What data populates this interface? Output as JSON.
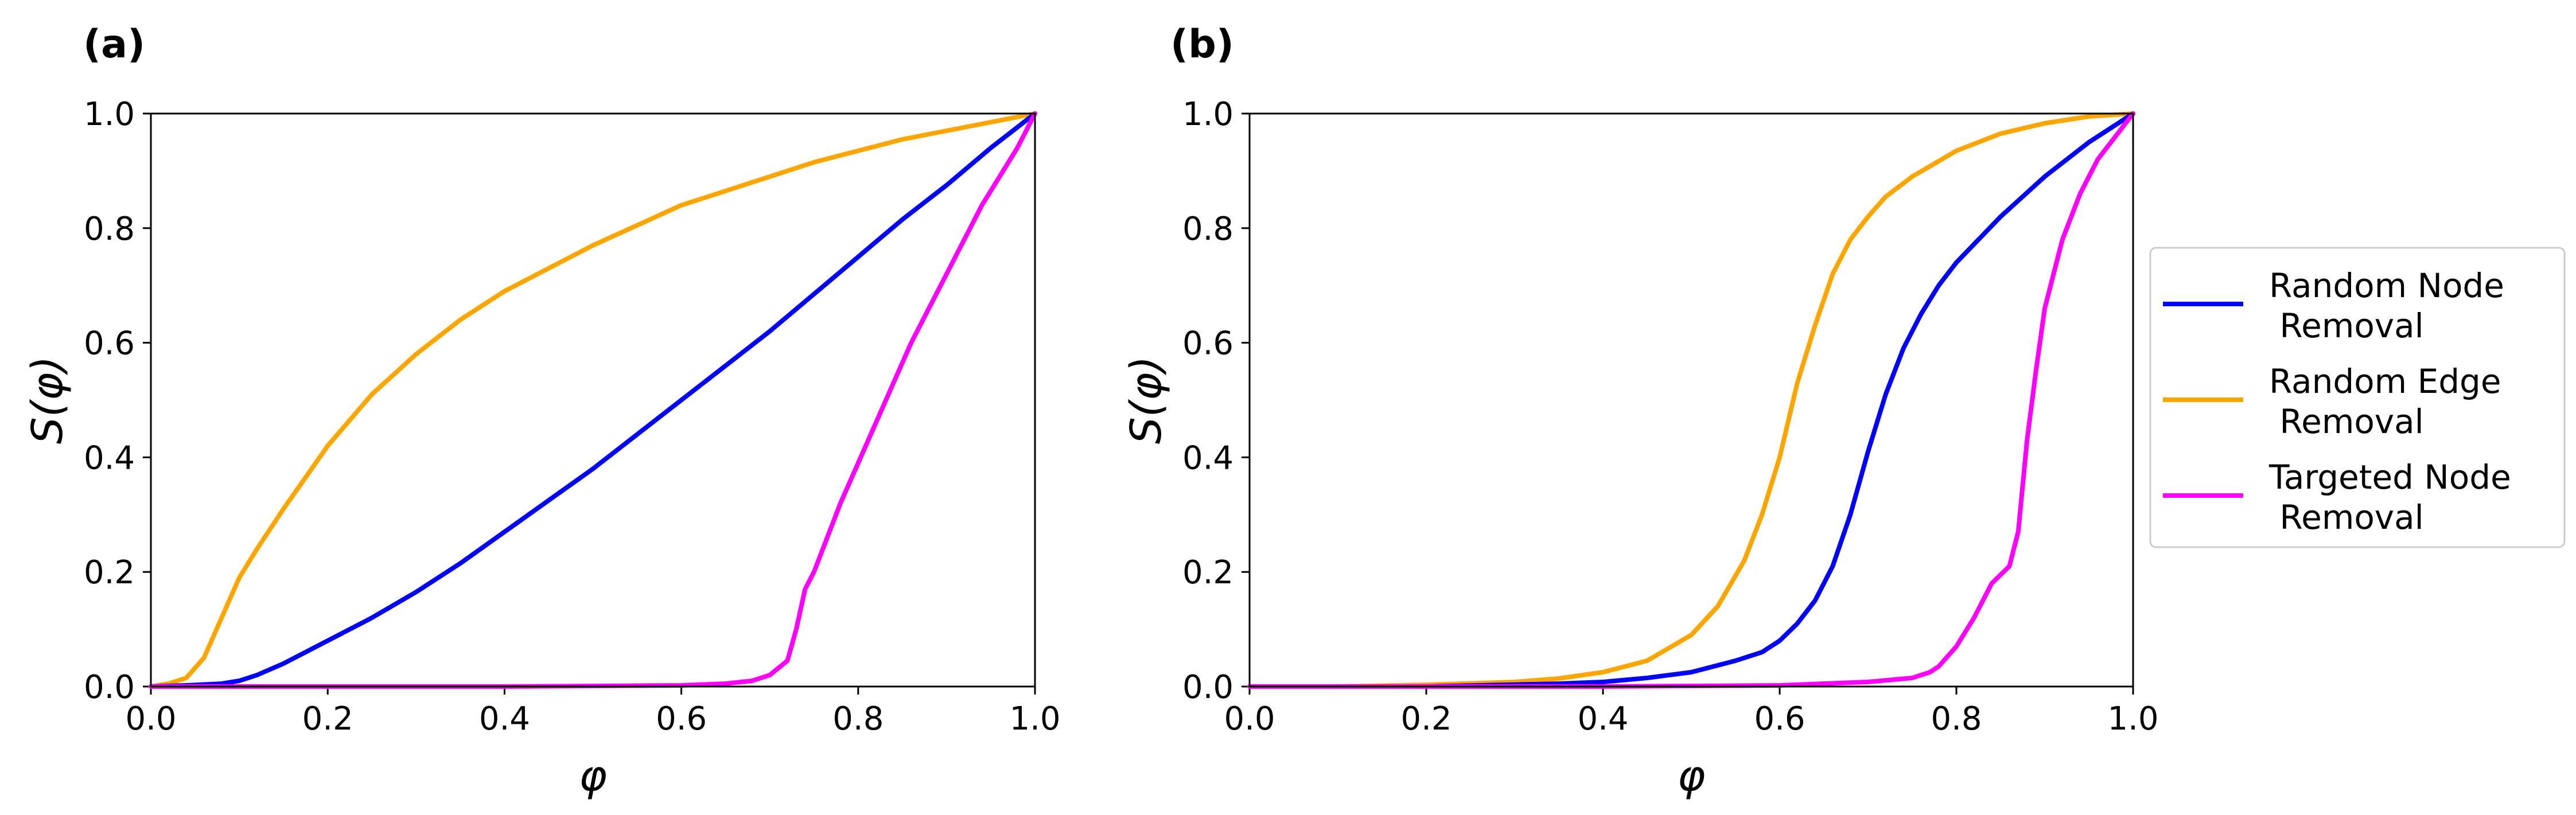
{
  "chart_data": [
    {
      "panel_label": "(a)",
      "type": "line",
      "xlabel": "φ",
      "ylabel": "S(φ)",
      "xlim": [
        0.0,
        1.0
      ],
      "ylim": [
        0.0,
        1.0
      ],
      "xticks": [
        "0.0",
        "0.2",
        "0.4",
        "0.6",
        "0.8",
        "1.0"
      ],
      "yticks": [
        "0.0",
        "0.2",
        "0.4",
        "0.6",
        "0.8",
        "1.0"
      ],
      "grid": false,
      "series": [
        {
          "name": "Random Edge Removal",
          "color": "#FFA500",
          "x": [
            0.0,
            0.02,
            0.04,
            0.06,
            0.08,
            0.1,
            0.12,
            0.15,
            0.2,
            0.25,
            0.3,
            0.35,
            0.4,
            0.45,
            0.5,
            0.55,
            0.6,
            0.65,
            0.7,
            0.75,
            0.8,
            0.85,
            0.9,
            0.95,
            1.0
          ],
          "y": [
            0.0,
            0.005,
            0.015,
            0.05,
            0.12,
            0.19,
            0.24,
            0.31,
            0.42,
            0.51,
            0.58,
            0.64,
            0.69,
            0.73,
            0.77,
            0.805,
            0.84,
            0.865,
            0.89,
            0.915,
            0.935,
            0.955,
            0.97,
            0.985,
            1.0
          ]
        },
        {
          "name": "Random Node Removal",
          "color": "#0000FF",
          "x": [
            0.0,
            0.04,
            0.08,
            0.1,
            0.12,
            0.15,
            0.2,
            0.25,
            0.3,
            0.35,
            0.4,
            0.45,
            0.5,
            0.55,
            0.6,
            0.65,
            0.7,
            0.75,
            0.8,
            0.85,
            0.9,
            0.95,
            1.0
          ],
          "y": [
            0.0,
            0.002,
            0.005,
            0.01,
            0.02,
            0.04,
            0.08,
            0.12,
            0.165,
            0.215,
            0.27,
            0.325,
            0.38,
            0.44,
            0.5,
            0.56,
            0.62,
            0.685,
            0.75,
            0.815,
            0.875,
            0.94,
            1.0
          ]
        },
        {
          "name": "Targeted Node Removal",
          "color": "#FF00FF",
          "x": [
            0.0,
            0.2,
            0.4,
            0.6,
            0.65,
            0.68,
            0.7,
            0.72,
            0.73,
            0.74,
            0.75,
            0.76,
            0.78,
            0.8,
            0.82,
            0.84,
            0.86,
            0.88,
            0.9,
            0.92,
            0.94,
            0.96,
            0.98,
            1.0
          ],
          "y": [
            0.0,
            0.0,
            0.0,
            0.002,
            0.005,
            0.01,
            0.02,
            0.045,
            0.1,
            0.17,
            0.2,
            0.24,
            0.32,
            0.39,
            0.46,
            0.53,
            0.6,
            0.66,
            0.72,
            0.78,
            0.84,
            0.89,
            0.94,
            1.0
          ]
        }
      ]
    },
    {
      "panel_label": "(b)",
      "type": "line",
      "xlabel": "φ",
      "ylabel": "S(φ)",
      "xlim": [
        0.0,
        1.0
      ],
      "ylim": [
        0.0,
        1.0
      ],
      "xticks": [
        "0.0",
        "0.2",
        "0.4",
        "0.6",
        "0.8",
        "1.0"
      ],
      "yticks": [
        "0.0",
        "0.2",
        "0.4",
        "0.6",
        "0.8",
        "1.0"
      ],
      "grid": false,
      "legend_position": "outside-right",
      "legend": [
        "Random Node\n Removal",
        "Random Edge\n Removal",
        "Targeted Node\n Removal"
      ],
      "series": [
        {
          "name": "Random Edge Removal",
          "color": "#FFA500",
          "x": [
            0.0,
            0.1,
            0.2,
            0.3,
            0.35,
            0.4,
            0.45,
            0.5,
            0.53,
            0.56,
            0.58,
            0.6,
            0.62,
            0.64,
            0.66,
            0.68,
            0.7,
            0.72,
            0.75,
            0.8,
            0.85,
            0.9,
            0.95,
            1.0
          ],
          "y": [
            0.0,
            0.0,
            0.003,
            0.008,
            0.014,
            0.025,
            0.045,
            0.09,
            0.14,
            0.22,
            0.3,
            0.4,
            0.53,
            0.63,
            0.72,
            0.78,
            0.82,
            0.855,
            0.89,
            0.935,
            0.965,
            0.983,
            0.995,
            1.0
          ]
        },
        {
          "name": "Random Node Removal",
          "color": "#0000FF",
          "x": [
            0.0,
            0.2,
            0.35,
            0.4,
            0.45,
            0.5,
            0.55,
            0.58,
            0.6,
            0.62,
            0.64,
            0.66,
            0.68,
            0.7,
            0.72,
            0.74,
            0.76,
            0.78,
            0.8,
            0.85,
            0.9,
            0.95,
            1.0
          ],
          "y": [
            0.0,
            0.0,
            0.005,
            0.008,
            0.015,
            0.025,
            0.045,
            0.06,
            0.08,
            0.11,
            0.15,
            0.21,
            0.3,
            0.41,
            0.51,
            0.59,
            0.65,
            0.7,
            0.74,
            0.82,
            0.89,
            0.95,
            1.0
          ]
        },
        {
          "name": "Targeted Node Removal",
          "color": "#FF00FF",
          "x": [
            0.0,
            0.4,
            0.6,
            0.7,
            0.75,
            0.77,
            0.78,
            0.8,
            0.82,
            0.84,
            0.86,
            0.87,
            0.88,
            0.89,
            0.9,
            0.92,
            0.94,
            0.96,
            0.98,
            1.0
          ],
          "y": [
            0.0,
            0.0,
            0.002,
            0.008,
            0.015,
            0.025,
            0.035,
            0.07,
            0.12,
            0.18,
            0.21,
            0.27,
            0.43,
            0.55,
            0.66,
            0.78,
            0.86,
            0.92,
            0.96,
            1.0
          ]
        }
      ]
    }
  ]
}
